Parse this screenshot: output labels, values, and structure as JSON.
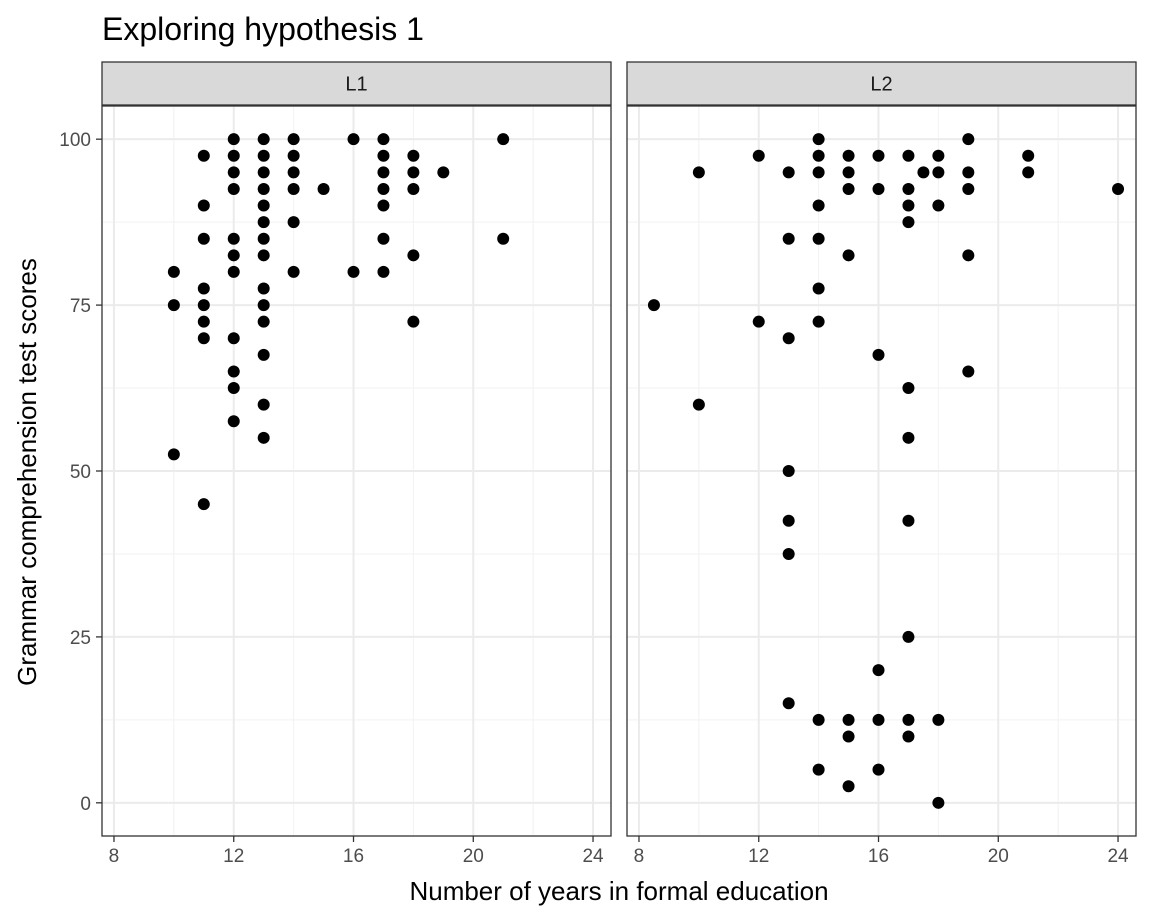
{
  "chart_data": {
    "type": "scatter",
    "title": "Exploring hypothesis 1",
    "xlabel": "Number of years in formal education",
    "ylabel": "Grammar comprehension test scores",
    "xlim": [
      7.6,
      24.6
    ],
    "ylim": [
      -5,
      105
    ],
    "x_ticks": [
      8,
      12,
      16,
      20,
      24
    ],
    "y_ticks": [
      0,
      25,
      50,
      75,
      100
    ],
    "grid": true,
    "facets": [
      {
        "name": "L1",
        "points": [
          [
            10,
            80
          ],
          [
            10,
            75
          ],
          [
            10,
            52.5
          ],
          [
            11,
            97.5
          ],
          [
            11,
            90
          ],
          [
            11,
            85
          ],
          [
            11,
            77.5
          ],
          [
            11,
            75
          ],
          [
            11,
            72.5
          ],
          [
            11,
            70
          ],
          [
            11,
            45
          ],
          [
            12,
            100
          ],
          [
            12,
            97.5
          ],
          [
            12,
            95
          ],
          [
            12,
            92.5
          ],
          [
            12,
            85
          ],
          [
            12,
            82.5
          ],
          [
            12,
            80
          ],
          [
            12,
            70
          ],
          [
            12,
            65
          ],
          [
            12,
            62.5
          ],
          [
            12,
            57.5
          ],
          [
            13,
            100
          ],
          [
            13,
            97.5
          ],
          [
            13,
            95
          ],
          [
            13,
            92.5
          ],
          [
            13,
            90
          ],
          [
            13,
            87.5
          ],
          [
            13,
            85
          ],
          [
            13,
            82.5
          ],
          [
            13,
            77.5
          ],
          [
            13,
            75
          ],
          [
            13,
            72.5
          ],
          [
            13,
            67.5
          ],
          [
            13,
            60
          ],
          [
            13,
            55
          ],
          [
            14,
            100
          ],
          [
            14,
            97.5
          ],
          [
            14,
            95
          ],
          [
            14,
            92.5
          ],
          [
            14,
            87.5
          ],
          [
            14,
            80
          ],
          [
            15,
            92.5
          ],
          [
            16,
            100
          ],
          [
            16,
            80
          ],
          [
            17,
            100
          ],
          [
            17,
            97.5
          ],
          [
            17,
            95
          ],
          [
            17,
            92.5
          ],
          [
            17,
            90
          ],
          [
            17,
            85
          ],
          [
            17,
            80
          ],
          [
            18,
            97.5
          ],
          [
            18,
            95
          ],
          [
            18,
            92.5
          ],
          [
            18,
            82.5
          ],
          [
            18,
            72.5
          ],
          [
            19,
            95
          ],
          [
            21,
            100
          ],
          [
            21,
            85
          ]
        ]
      },
      {
        "name": "L2",
        "points": [
          [
            8.5,
            75
          ],
          [
            10,
            95
          ],
          [
            10,
            60
          ],
          [
            12,
            97.5
          ],
          [
            12,
            72.5
          ],
          [
            13,
            95
          ],
          [
            13,
            85
          ],
          [
            13,
            70
          ],
          [
            13,
            50
          ],
          [
            13,
            42.5
          ],
          [
            13,
            37.5
          ],
          [
            13,
            15
          ],
          [
            14,
            100
          ],
          [
            14,
            97.5
          ],
          [
            14,
            95
          ],
          [
            14,
            90
          ],
          [
            14,
            85
          ],
          [
            14,
            77.5
          ],
          [
            14,
            72.5
          ],
          [
            14,
            12.5
          ],
          [
            14,
            5
          ],
          [
            15,
            97.5
          ],
          [
            15,
            95
          ],
          [
            15,
            92.5
          ],
          [
            15,
            82.5
          ],
          [
            15,
            12.5
          ],
          [
            15,
            10
          ],
          [
            15,
            2.5
          ],
          [
            16,
            97.5
          ],
          [
            16,
            92.5
          ],
          [
            16,
            67.5
          ],
          [
            16,
            20
          ],
          [
            16,
            12.5
          ],
          [
            16,
            5
          ],
          [
            17,
            97.5
          ],
          [
            17,
            92.5
          ],
          [
            17,
            90
          ],
          [
            17,
            87.5
          ],
          [
            17,
            62.5
          ],
          [
            17,
            55
          ],
          [
            17,
            42.5
          ],
          [
            17,
            25
          ],
          [
            17,
            12.5
          ],
          [
            17,
            10
          ],
          [
            17.5,
            95
          ],
          [
            18,
            97.5
          ],
          [
            18,
            95
          ],
          [
            18,
            90
          ],
          [
            18,
            12.5
          ],
          [
            18,
            0
          ],
          [
            19,
            100
          ],
          [
            19,
            95
          ],
          [
            19,
            92.5
          ],
          [
            19,
            82.5
          ],
          [
            19,
            65
          ],
          [
            21,
            97.5
          ],
          [
            21,
            95
          ],
          [
            24,
            92.5
          ]
        ]
      }
    ]
  },
  "colors": {
    "panel_border": "#333333",
    "strip_fill": "#d9d9d9",
    "grid_major": "#ebebeb",
    "grid_minor": "#f2f2f2",
    "point": "#000000"
  }
}
